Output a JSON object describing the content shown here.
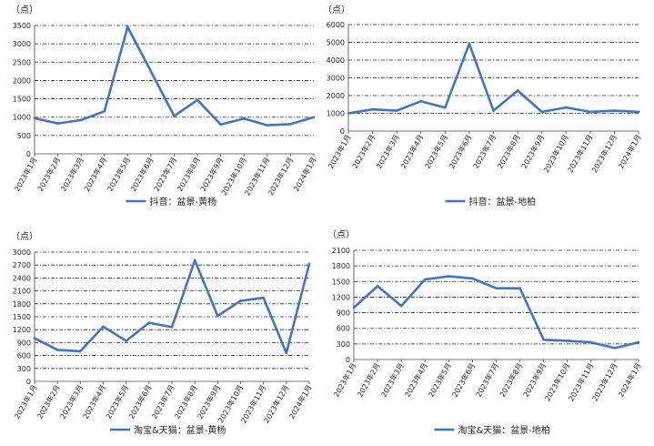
{
  "chart_data": [
    {
      "type": "line",
      "unit_label": "（点）",
      "categories": [
        "2023年1月",
        "2023年2月",
        "2023年3月",
        "2023年4月",
        "2023年5月",
        "2023年6月",
        "2023年7月",
        "2023年8月",
        "2023年9月",
        "2023年10月",
        "2023年11月",
        "2023年12月",
        "2024年1月"
      ],
      "series": [
        {
          "name": "抖音：盆景-黄杨",
          "values": [
            970,
            830,
            920,
            1160,
            3460,
            2250,
            1030,
            1470,
            800,
            960,
            780,
            810,
            1000
          ]
        }
      ],
      "yticks": [
        0,
        500,
        1000,
        1500,
        2000,
        2500,
        3000,
        3500
      ],
      "ylim": [
        0,
        3500
      ],
      "legend_position": "bottom",
      "color": "#4472C4"
    },
    {
      "type": "line",
      "unit_label": "（点）",
      "categories": [
        "2023年1月",
        "2023年2月",
        "2023年3月",
        "2023年4月",
        "2023年5月",
        "2023年6月",
        "2023年7月",
        "2023年8月",
        "2023年9月",
        "2023年10月",
        "2023年11月",
        "2023年12月",
        "2024年1月"
      ],
      "series": [
        {
          "name": "抖音：盆景-地柏",
          "values": [
            1000,
            1220,
            1150,
            1680,
            1320,
            4920,
            1150,
            2280,
            1080,
            1330,
            1080,
            1150,
            1080
          ]
        }
      ],
      "yticks": [
        0,
        1000,
        2000,
        3000,
        4000,
        5000,
        6000
      ],
      "ylim": [
        0,
        6000
      ],
      "legend_position": "bottom",
      "color": "#4472C4"
    },
    {
      "type": "line",
      "unit_label": "（点）",
      "categories": [
        "2023年1月",
        "2023年2月",
        "2023年3月",
        "2023年4月",
        "2023年5月",
        "2023年6月",
        "2023年7月",
        "2023年8月",
        "2023年9月",
        "2023年10月",
        "2023年11月",
        "2023年12月",
        "2024年1月"
      ],
      "series": [
        {
          "name": "淘宝&天猫：盆景-黄杨",
          "values": [
            1000,
            730,
            700,
            1270,
            940,
            1360,
            1260,
            2810,
            1520,
            1870,
            1940,
            660,
            2730
          ]
        }
      ],
      "yticks": [
        0,
        300,
        600,
        900,
        1200,
        1500,
        1800,
        2100,
        2400,
        2700,
        3000
      ],
      "ylim": [
        0,
        3000
      ],
      "legend_position": "bottom",
      "color": "#4472C4"
    },
    {
      "type": "line",
      "unit_label": "（点）",
      "categories": [
        "2023年1月",
        "2023年2月",
        "2023年3月",
        "2023年4月",
        "2023年5月",
        "2023年6月",
        "2023年7月",
        "2023年8月",
        "2023年9月",
        "2023年10月",
        "2023年11月",
        "2023年12月",
        "2024年1月"
      ],
      "series": [
        {
          "name": "淘宝&天猫：盆景-地柏",
          "values": [
            1000,
            1410,
            1030,
            1540,
            1600,
            1560,
            1370,
            1370,
            380,
            360,
            330,
            220,
            330
          ]
        }
      ],
      "yticks": [
        0,
        300,
        600,
        900,
        1200,
        1500,
        1800,
        2100
      ],
      "ylim": [
        0,
        2100
      ],
      "legend_position": "bottom",
      "color": "#4472C4"
    }
  ]
}
